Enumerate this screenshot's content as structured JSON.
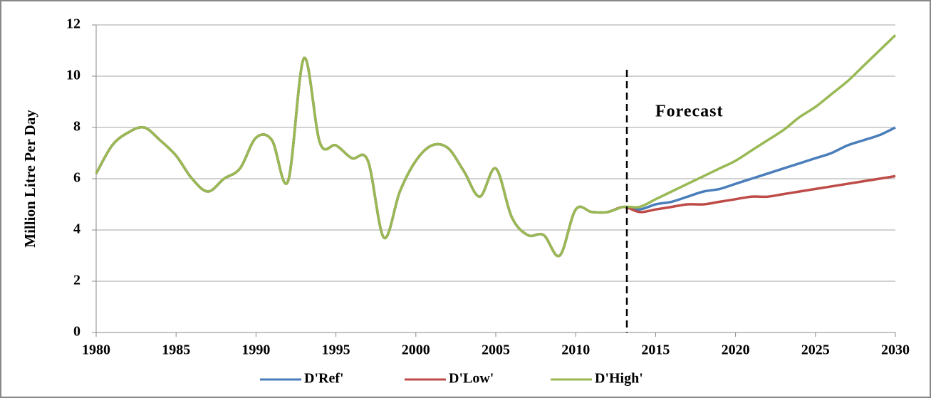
{
  "chart_data": {
    "type": "line",
    "y_label": "Million Litre Per Day",
    "x": [
      1980,
      1981,
      1982,
      1983,
      1984,
      1985,
      1986,
      1987,
      1988,
      1989,
      1990,
      1991,
      1992,
      1993,
      1994,
      1995,
      1996,
      1997,
      1998,
      1999,
      2000,
      2001,
      2002,
      2003,
      2004,
      2005,
      2006,
      2007,
      2008,
      2009,
      2010,
      2011,
      2012,
      2013,
      2014,
      2015,
      2016,
      2017,
      2018,
      2019,
      2020,
      2021,
      2022,
      2023,
      2024,
      2025,
      2026,
      2027,
      2028,
      2029,
      2030
    ],
    "series": [
      {
        "name": "D'Ref'",
        "color": "#4a7ebb",
        "values": [
          6.2,
          7.3,
          7.8,
          8.0,
          7.5,
          6.9,
          6.0,
          5.5,
          6.0,
          6.4,
          7.6,
          7.5,
          5.9,
          10.7,
          7.4,
          7.3,
          6.8,
          6.7,
          3.7,
          5.5,
          6.7,
          7.3,
          7.2,
          6.3,
          5.3,
          6.4,
          4.5,
          3.8,
          3.8,
          3.0,
          4.8,
          4.7,
          4.7,
          4.9,
          4.8,
          5.0,
          5.1,
          5.3,
          5.5,
          5.6,
          5.8,
          6.0,
          6.2,
          6.4,
          6.6,
          6.8,
          7.0,
          7.3,
          7.5,
          7.7,
          8.0
        ]
      },
      {
        "name": "D'Low'",
        "color": "#be4b48",
        "values": [
          6.2,
          7.3,
          7.8,
          8.0,
          7.5,
          6.9,
          6.0,
          5.5,
          6.0,
          6.4,
          7.6,
          7.5,
          5.9,
          10.7,
          7.4,
          7.3,
          6.8,
          6.7,
          3.7,
          5.5,
          6.7,
          7.3,
          7.2,
          6.3,
          5.3,
          6.4,
          4.5,
          3.8,
          3.8,
          3.0,
          4.8,
          4.7,
          4.7,
          4.9,
          4.7,
          4.8,
          4.9,
          5.0,
          5.0,
          5.1,
          5.2,
          5.3,
          5.3,
          5.4,
          5.5,
          5.6,
          5.7,
          5.8,
          5.9,
          6.0,
          6.1
        ]
      },
      {
        "name": "D'High'",
        "color": "#98b954",
        "values": [
          6.2,
          7.3,
          7.8,
          8.0,
          7.5,
          6.9,
          6.0,
          5.5,
          6.0,
          6.4,
          7.6,
          7.5,
          5.9,
          10.7,
          7.4,
          7.3,
          6.8,
          6.7,
          3.7,
          5.5,
          6.7,
          7.3,
          7.2,
          6.3,
          5.3,
          6.4,
          4.5,
          3.8,
          3.8,
          3.0,
          4.8,
          4.7,
          4.7,
          4.9,
          4.9,
          5.2,
          5.5,
          5.8,
          6.1,
          6.4,
          6.7,
          7.1,
          7.5,
          7.9,
          8.4,
          8.8,
          9.3,
          9.8,
          10.4,
          11.0,
          11.6
        ]
      }
    ],
    "annotations": [
      {
        "text": "Forecast",
        "line_x": 2013.2
      }
    ],
    "xlim": [
      1980,
      2030
    ],
    "xticks": [
      1980,
      1985,
      1990,
      1995,
      2000,
      2005,
      2010,
      2015,
      2020,
      2025,
      2030
    ],
    "ylim": [
      0,
      12
    ],
    "yticks": [
      0,
      2,
      4,
      6,
      8,
      10,
      12
    ],
    "grid": true,
    "legend": "bottom"
  }
}
